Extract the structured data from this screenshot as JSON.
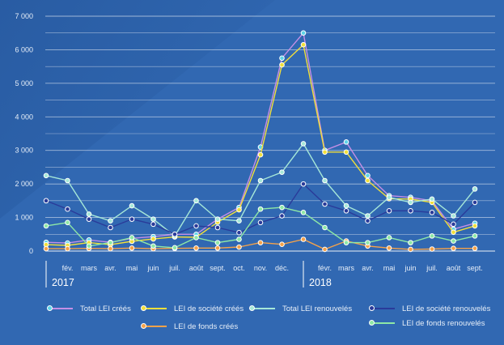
{
  "chart_data": {
    "type": "line",
    "title": "",
    "xlabel": "",
    "ylabel": "",
    "ylim": [
      0,
      7000
    ],
    "yticks": [
      "0",
      "1 000",
      "2 000",
      "3 000",
      "4 000",
      "5 000",
      "6 000",
      "7 000"
    ],
    "ytick_values": [
      0,
      1000,
      2000,
      3000,
      4000,
      5000,
      6000,
      7000
    ],
    "categories": [
      "",
      "févr.",
      "mars",
      "avr.",
      "mai",
      "juin",
      "juil.",
      "août",
      "sept.",
      "oct.",
      "nov.",
      "déc.",
      "",
      "févr.",
      "mars",
      "avr.",
      "mai",
      "juin",
      "juil.",
      "août",
      "sept."
    ],
    "tick_display": [
      "",
      "fév.",
      "mars",
      "avr.",
      "mai",
      "juin",
      "juil.",
      "août",
      "sept.",
      "oct.",
      "nov.",
      "déc.",
      "",
      "févr.",
      "mars",
      "avr.",
      "mai",
      "juin",
      "juil.",
      "août",
      "sept."
    ],
    "year_labels": [
      {
        "index": 0,
        "label": "2017"
      },
      {
        "index": 12,
        "label": "2018"
      }
    ],
    "grid": true,
    "legend_position": "bottom",
    "series": [
      {
        "name": "Total LEI créés",
        "color": "#c58fe6",
        "marker_fill": "#5fd4e8",
        "values": [
          260,
          240,
          330,
          260,
          380,
          430,
          500,
          500,
          950,
          1300,
          3100,
          5750,
          6500,
          3000,
          3250,
          2250,
          1650,
          1600,
          1500,
          650,
          830
        ]
      },
      {
        "name": "LEI de société créés",
        "color": "#f2df3a",
        "marker_fill": "#f2df3a",
        "values": [
          190,
          170,
          250,
          190,
          290,
          360,
          420,
          410,
          860,
          1230,
          2870,
          5550,
          6150,
          2950,
          2950,
          2100,
          1560,
          1550,
          1450,
          560,
          750
        ]
      },
      {
        "name": "Total LEI renouvelés",
        "color": "#a6e8d8",
        "marker_fill": "#a6e8d8",
        "values": [
          2250,
          2100,
          1100,
          900,
          1350,
          950,
          450,
          1500,
          950,
          900,
          2100,
          2350,
          3200,
          2100,
          1350,
          1050,
          1600,
          1450,
          1550,
          1050,
          1850
        ]
      },
      {
        "name": "LEI de société renouvelés",
        "color": "#2a3b9a",
        "marker_fill": "#2a3b9a",
        "values": [
          1500,
          1250,
          950,
          700,
          950,
          800,
          500,
          750,
          700,
          550,
          850,
          1050,
          2000,
          1400,
          1200,
          900,
          1200,
          1200,
          1150,
          800,
          1450
        ]
      },
      {
        "name": "LEI de fonds créés",
        "color": "#f5a24a",
        "marker_fill": "#f5a24a",
        "values": [
          70,
          70,
          80,
          70,
          90,
          70,
          80,
          90,
          90,
          120,
          250,
          200,
          350,
          50,
          300,
          150,
          90,
          50,
          60,
          80,
          80
        ]
      },
      {
        "name": "LEI de fonds renouvelés",
        "color": "#8ee8a6",
        "marker_fill": "#8ee8a6",
        "values": [
          750,
          850,
          150,
          250,
          400,
          150,
          100,
          400,
          250,
          350,
          1250,
          1300,
          1150,
          700,
          250,
          250,
          400,
          250,
          450,
          300,
          450
        ]
      }
    ]
  }
}
